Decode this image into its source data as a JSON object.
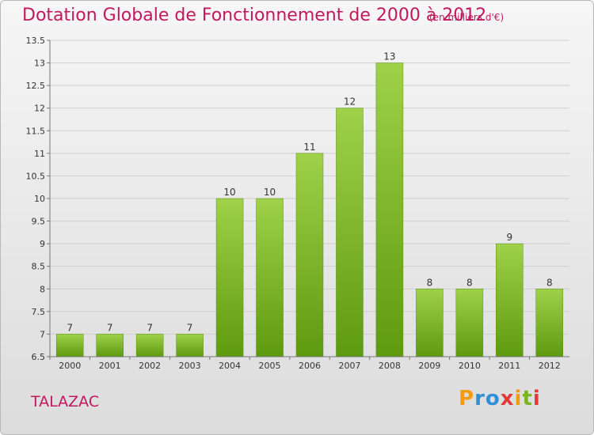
{
  "title": "Dotation Globale de Fonctionnement de 2000 à 2012",
  "subtitle": "(en milliers d'€)",
  "commune": "TALAZAC",
  "logo": {
    "letters": [
      "P",
      "r",
      "o",
      "x",
      "i",
      "t",
      "i"
    ],
    "colors": [
      "#f39c12",
      "#2f8fd8",
      "#2f8fd8",
      "#e23a3a",
      "#f39c12",
      "#7ab51d",
      "#e23a3a"
    ]
  },
  "colors": {
    "bar": "#7ab51d",
    "title": "#c0195e"
  },
  "chart_data": {
    "type": "bar",
    "categories": [
      "2000",
      "2001",
      "2002",
      "2003",
      "2004",
      "2005",
      "2006",
      "2007",
      "2008",
      "2009",
      "2010",
      "2011",
      "2012"
    ],
    "values": [
      7,
      7,
      7,
      7,
      10,
      10,
      11,
      12,
      13,
      8,
      8,
      9,
      8
    ],
    "data_labels": [
      "7",
      "7",
      "7",
      "7",
      "10",
      "10",
      "11",
      "12",
      "13",
      "8",
      "8",
      "9",
      "8"
    ],
    "ylim": [
      6.5,
      13.5
    ],
    "yticks": [
      6.5,
      7,
      7.5,
      8,
      8.5,
      9,
      9.5,
      10,
      10.5,
      11,
      11.5,
      12,
      12.5,
      13,
      13.5
    ],
    "ytick_labels": [
      "6.5",
      "7",
      "7.5",
      "8",
      "8.5",
      "9",
      "9.5",
      "10",
      "10.5",
      "11",
      "11.5",
      "12",
      "12.5",
      "13",
      "13.5"
    ],
    "grid": true,
    "title": "Dotation Globale de Fonctionnement de 2000 à 2012",
    "xlabel": "",
    "ylabel": ""
  }
}
